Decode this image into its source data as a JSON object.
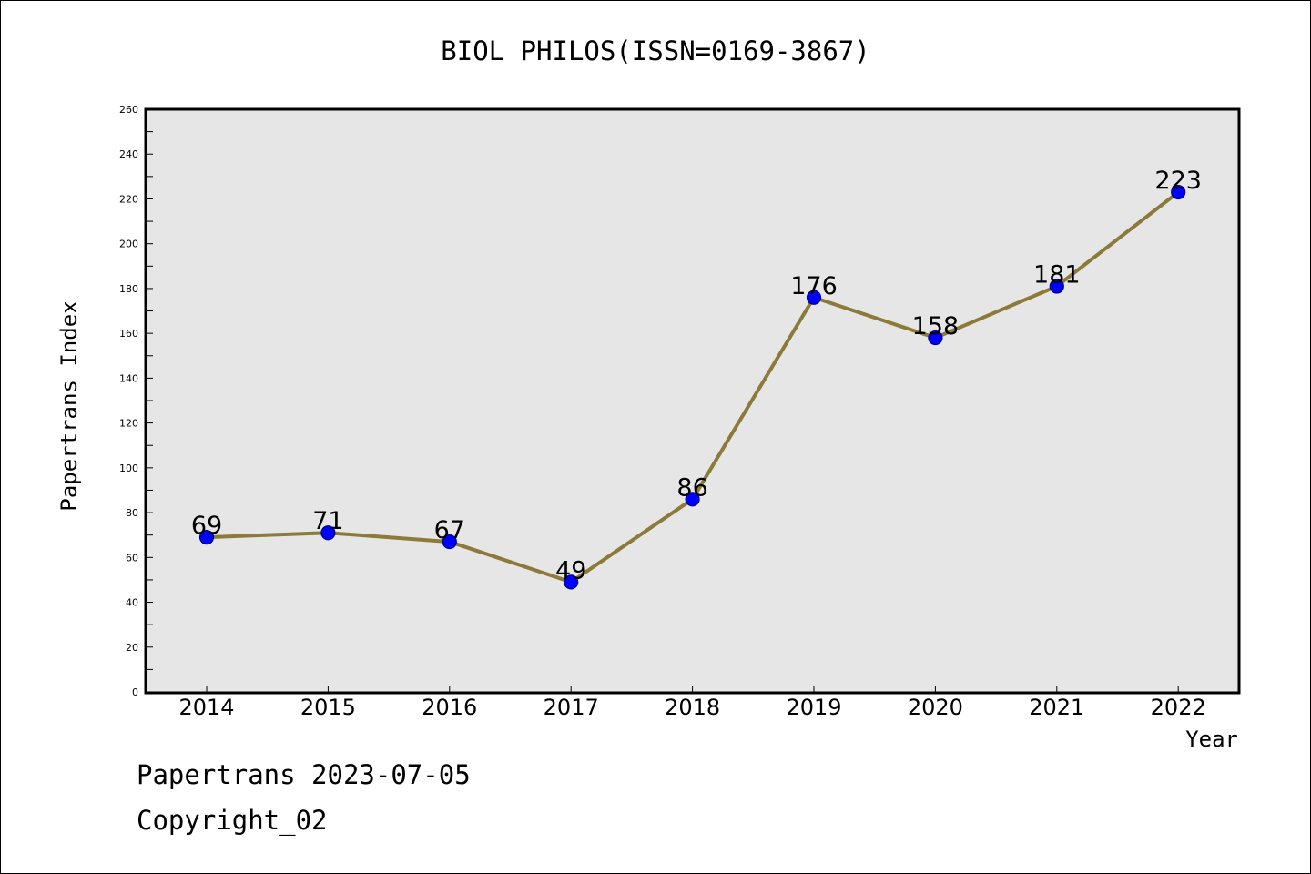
{
  "chart_data": {
    "type": "line",
    "title": "BIOL PHILOS(ISSN=0169-3867)",
    "xlabel": "Year",
    "ylabel": "Papertrans Index",
    "categories": [
      "2014",
      "2015",
      "2016",
      "2017",
      "2018",
      "2019",
      "2020",
      "2021",
      "2022"
    ],
    "values": [
      69,
      71,
      67,
      49,
      86,
      176,
      158,
      181,
      223
    ],
    "ylim": [
      0,
      260
    ],
    "yticks": [
      0,
      20,
      40,
      60,
      80,
      100,
      120,
      140,
      160,
      180,
      200,
      220,
      240,
      260
    ],
    "grid": false,
    "legend": "none",
    "data_labels": true
  },
  "colors": {
    "line": "#8b7a3a",
    "marker_fill": "#0000ff",
    "marker_edge": "#000080",
    "plot_background": "#e6e6e6",
    "axes_frame": "#000000"
  },
  "footer": {
    "date_line": "Papertrans 2023-07-05",
    "copyright_line": "Copyright_02"
  }
}
